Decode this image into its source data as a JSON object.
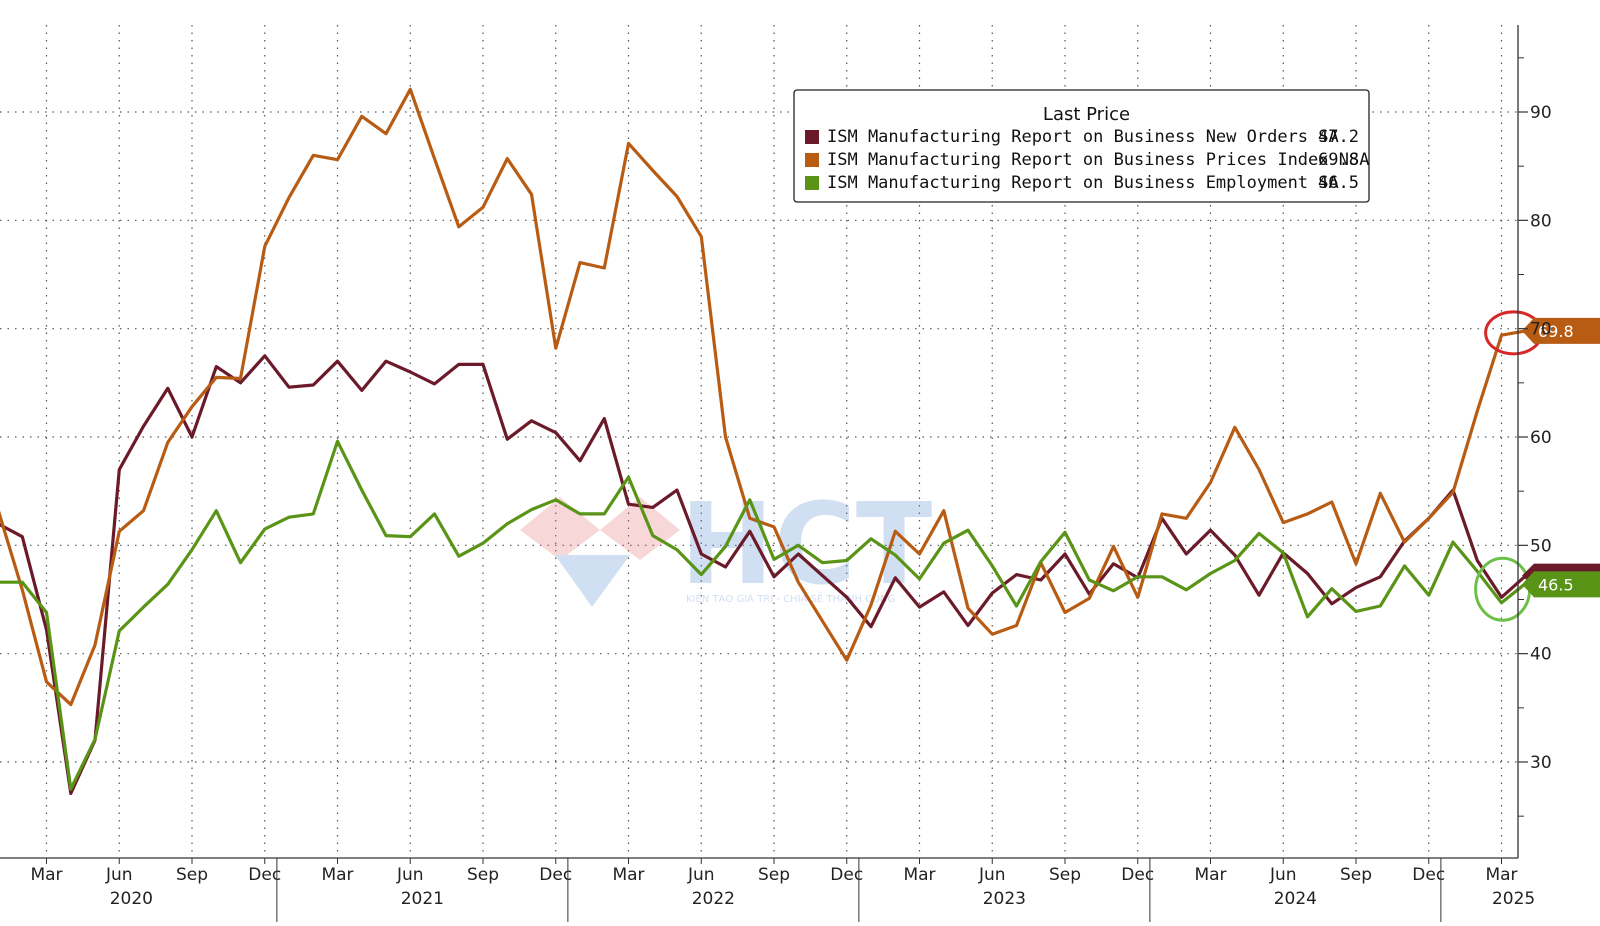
{
  "chart_data": {
    "type": "line",
    "legend": {
      "title": "Last Price",
      "placement": "top-center"
    },
    "y_axis": {
      "side": "right",
      "ylim": [
        21,
        98
      ],
      "ticks": [
        30,
        40,
        50,
        60,
        70,
        80,
        90
      ]
    },
    "x_axis": {
      "month_ticks": [
        "Mar",
        "Jun",
        "Sep",
        "Dec",
        "Mar",
        "Jun",
        "Sep",
        "Dec",
        "Mar",
        "Jun",
        "Sep",
        "Dec",
        "Mar",
        "Jun",
        "Sep",
        "Dec",
        "Mar",
        "Jun",
        "Sep",
        "Dec",
        "Mar"
      ],
      "year_labels": [
        "2020",
        "2021",
        "2022",
        "2023",
        "2024",
        "2025"
      ]
    },
    "grid": true,
    "x": [
      "2020-01",
      "2020-02",
      "2020-03",
      "2020-04",
      "2020-05",
      "2020-06",
      "2020-07",
      "2020-08",
      "2020-09",
      "2020-10",
      "2020-11",
      "2020-12",
      "2021-01",
      "2021-02",
      "2021-03",
      "2021-04",
      "2021-05",
      "2021-06",
      "2021-07",
      "2021-08",
      "2021-09",
      "2021-10",
      "2021-11",
      "2021-12",
      "2022-01",
      "2022-02",
      "2022-03",
      "2022-04",
      "2022-05",
      "2022-06",
      "2022-07",
      "2022-08",
      "2022-09",
      "2022-10",
      "2022-11",
      "2022-12",
      "2023-01",
      "2023-02",
      "2023-03",
      "2023-04",
      "2023-05",
      "2023-06",
      "2023-07",
      "2023-08",
      "2023-09",
      "2023-10",
      "2023-11",
      "2023-12",
      "2024-01",
      "2024-02",
      "2024-03",
      "2024-04",
      "2024-05",
      "2024-06",
      "2024-07",
      "2024-08",
      "2024-09",
      "2024-10",
      "2024-11",
      "2024-12",
      "2025-01",
      "2025-02",
      "2025-03",
      "2025-04"
    ],
    "series": [
      {
        "name": "ISM Manufacturing Report on Business New Orders SA",
        "last_value": "47.2",
        "color": "#6b1a2a",
        "values": [
          52.0,
          50.8,
          42.2,
          27.1,
          32.0,
          57.0,
          61.0,
          64.5,
          60.0,
          66.5,
          65.0,
          67.5,
          64.6,
          64.8,
          67.0,
          64.3,
          67.0,
          66.0,
          64.9,
          66.7,
          66.7,
          59.8,
          61.5,
          60.4,
          57.8,
          61.7,
          53.8,
          53.5,
          55.1,
          49.2,
          48.0,
          51.3,
          47.1,
          49.2,
          47.2,
          45.2,
          42.5,
          47.0,
          44.3,
          45.7,
          42.6,
          45.6,
          47.3,
          46.8,
          49.2,
          45.5,
          48.3,
          47.0,
          52.5,
          49.2,
          51.4,
          49.1,
          45.4,
          49.3,
          47.4,
          44.6,
          46.1,
          47.1,
          50.4,
          52.5,
          55.1,
          48.6,
          45.2,
          47.2
        ]
      },
      {
        "name": "ISM Manufacturing Report on Business Prices Index NSA",
        "last_value": "69.8",
        "color": "#b85c14",
        "values": [
          53.3,
          45.9,
          37.4,
          35.3,
          40.8,
          51.3,
          53.2,
          59.5,
          62.8,
          65.5,
          65.4,
          77.6,
          82.1,
          86.0,
          85.6,
          89.6,
          88.0,
          92.1,
          85.7,
          79.4,
          81.2,
          85.7,
          82.4,
          68.2,
          76.1,
          75.6,
          87.1,
          84.6,
          82.2,
          78.5,
          60.0,
          52.5,
          51.7,
          46.6,
          43.0,
          39.4,
          44.5,
          51.3,
          49.2,
          53.2,
          44.2,
          41.8,
          42.6,
          48.4,
          43.8,
          45.1,
          49.9,
          45.2,
          52.9,
          52.5,
          55.8,
          60.9,
          57.0,
          52.1,
          52.9,
          54.0,
          48.3,
          54.8,
          50.3,
          52.5,
          54.9,
          62.4,
          69.4,
          69.8
        ]
      },
      {
        "name": "ISM Manufacturing Report on Business Employment SA",
        "last_value": "46.5",
        "color": "#5a9417",
        "values": [
          46.6,
          46.6,
          43.8,
          27.5,
          32.1,
          42.1,
          44.3,
          46.4,
          49.6,
          53.2,
          48.4,
          51.5,
          52.6,
          52.9,
          59.6,
          55.1,
          50.9,
          50.8,
          52.9,
          49.0,
          50.2,
          52.0,
          53.3,
          54.2,
          52.9,
          52.9,
          56.3,
          50.9,
          49.6,
          47.3,
          49.9,
          54.2,
          48.7,
          50.0,
          48.4,
          48.6,
          50.6,
          49.1,
          46.9,
          50.2,
          51.4,
          48.1,
          44.4,
          48.5,
          51.2,
          46.8,
          45.8,
          47.1,
          47.1,
          45.9,
          47.4,
          48.6,
          51.1,
          49.3,
          43.4,
          46.0,
          43.9,
          44.4,
          48.1,
          45.4,
          50.3,
          47.6,
          44.7,
          46.5
        ]
      }
    ],
    "annotations": [
      {
        "type": "price-badge",
        "series": "Prices",
        "text": "69.8",
        "color": "#b85c14"
      },
      {
        "type": "price-badge",
        "series": "Employment",
        "text": "46.5",
        "color": "#5a9417"
      }
    ],
    "watermark": {
      "text": "HCT",
      "subtext": "KIẾN TẠO GIÁ TRỊ - CHIA SẺ THÀNH CÔNG"
    }
  }
}
